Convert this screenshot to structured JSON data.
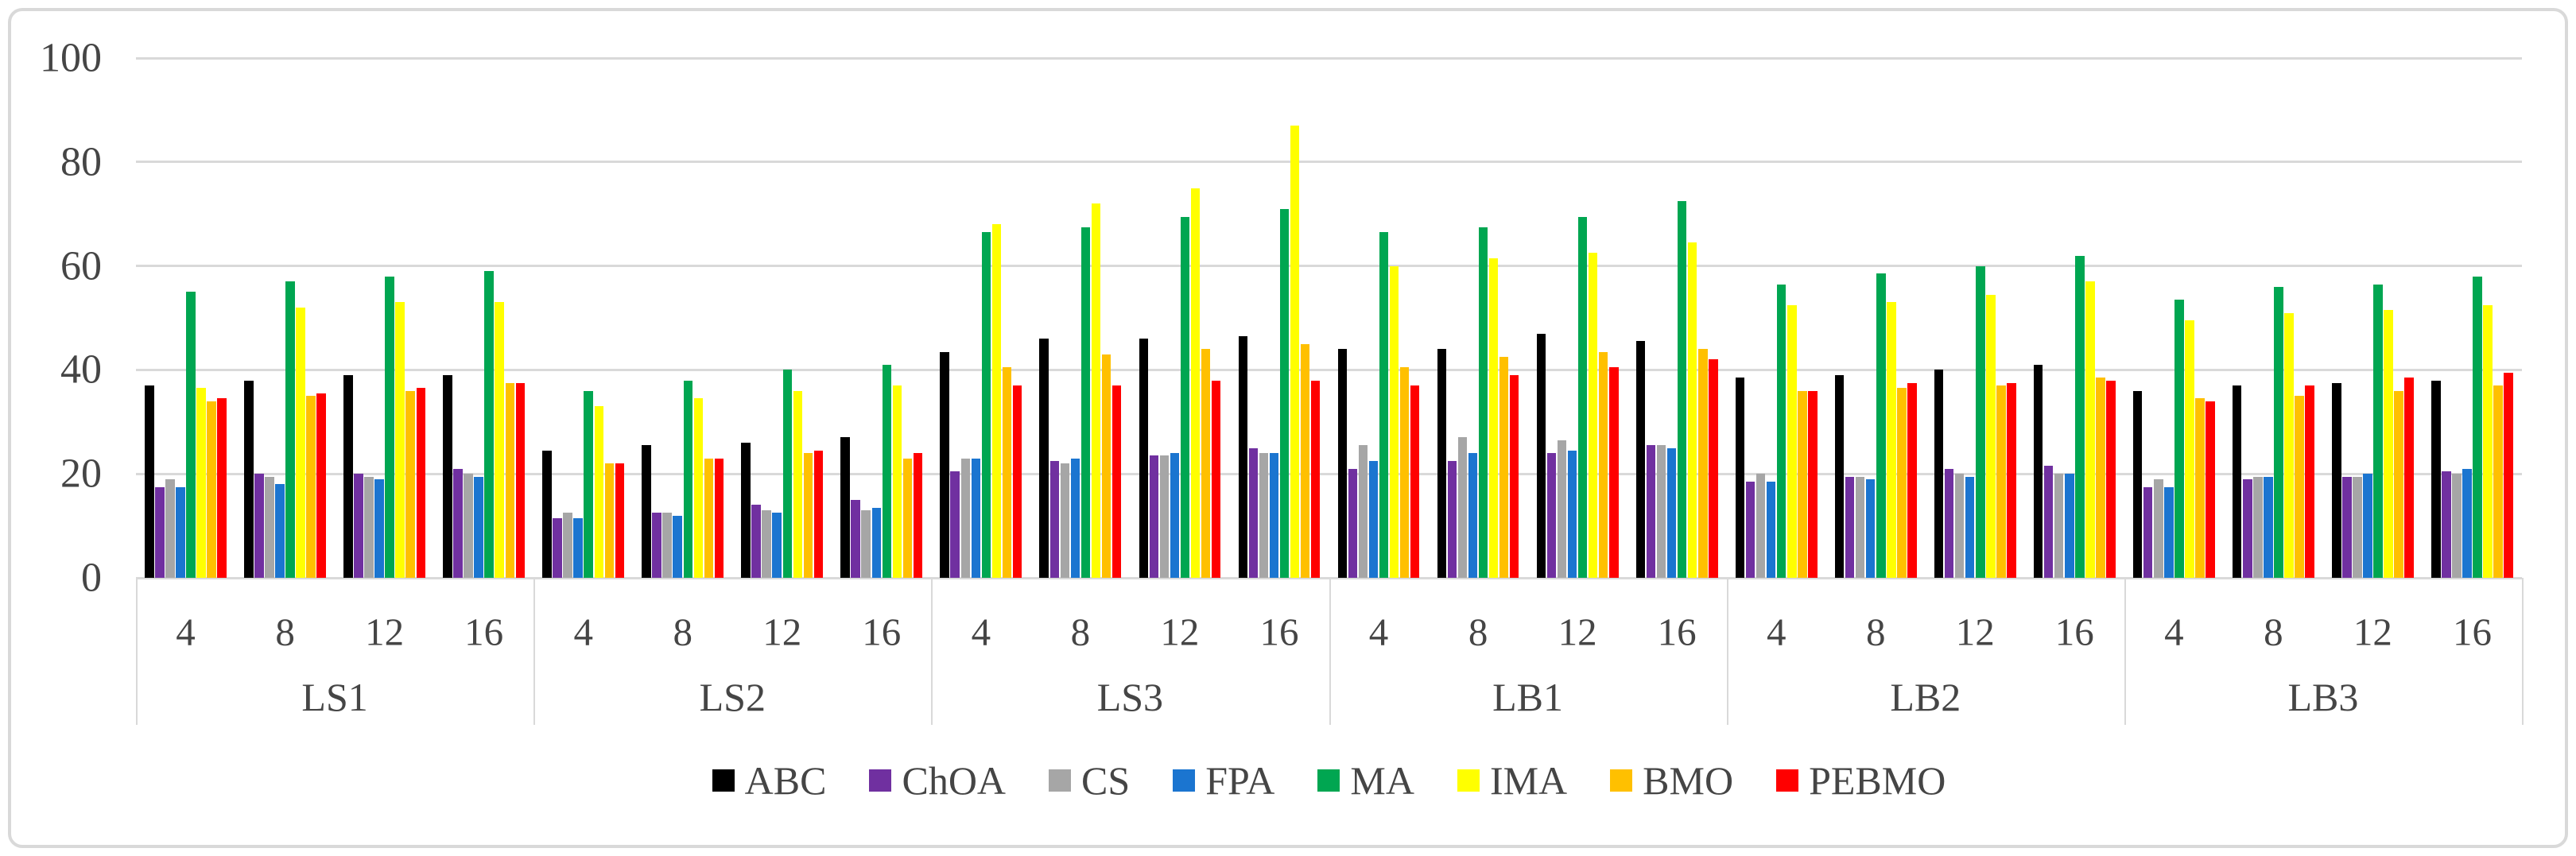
{
  "figure": {
    "background": "#FFFFFF",
    "border_color": "#D9D9D9",
    "gridline_color": "#D9D9D9",
    "axis_text_color": "#454545",
    "legend_text_color": "#454545"
  },
  "chart_data": {
    "type": "bar",
    "title": "",
    "xlabel": "",
    "ylabel": "",
    "groups": [
      "LS1",
      "LS2",
      "LS3",
      "LB1",
      "LB2",
      "LB3"
    ],
    "subgroups": [
      "4",
      "8",
      "12",
      "16"
    ],
    "y_axis": {
      "min": 0,
      "max": 100,
      "step": 20,
      "ticks": [
        "0",
        "20",
        "40",
        "60",
        "80",
        "100"
      ],
      "grid": true
    },
    "legend_position": "bottom",
    "series": [
      {
        "name": "ABC",
        "color": "#000000",
        "values": [
          [
            37,
            38,
            39,
            39
          ],
          [
            24.5,
            25.5,
            26,
            27
          ],
          [
            43.5,
            46,
            46,
            46.5
          ],
          [
            44,
            44,
            47,
            45.5
          ],
          [
            38.5,
            39,
            40,
            41
          ],
          [
            36,
            37,
            37.5,
            38
          ]
        ]
      },
      {
        "name": "ChOA",
        "color": "#7030A0",
        "values": [
          [
            17.5,
            20,
            20,
            21
          ],
          [
            11.5,
            12.5,
            14,
            15
          ],
          [
            20.5,
            22.5,
            23.5,
            25
          ],
          [
            21,
            22.5,
            24,
            25.5
          ],
          [
            18.5,
            19.5,
            21,
            21.5
          ],
          [
            17.5,
            19,
            19.5,
            20.5
          ]
        ]
      },
      {
        "name": "CS",
        "color": "#A6A6A6",
        "values": [
          [
            19,
            19.5,
            19.5,
            20
          ],
          [
            12.5,
            12.5,
            13,
            13
          ],
          [
            23,
            22,
            23.5,
            24
          ],
          [
            25.5,
            27,
            26.5,
            25.5
          ],
          [
            20,
            19.5,
            20,
            20
          ],
          [
            19,
            19.5,
            19.5,
            20
          ]
        ]
      },
      {
        "name": "FPA",
        "color": "#1B75D0",
        "values": [
          [
            17.5,
            18,
            19,
            19.5
          ],
          [
            11.5,
            12,
            12.5,
            13.5
          ],
          [
            23,
            23,
            24,
            24
          ],
          [
            22.5,
            24,
            24.5,
            25
          ],
          [
            18.5,
            19,
            19.5,
            20
          ],
          [
            17.5,
            19.5,
            20,
            21
          ]
        ]
      },
      {
        "name": "MA",
        "color": "#00A651",
        "values": [
          [
            55,
            57,
            58,
            59
          ],
          [
            36,
            38,
            40,
            41
          ],
          [
            66.5,
            67.5,
            69.5,
            71
          ],
          [
            66.5,
            67.5,
            69.5,
            72.5
          ],
          [
            56.5,
            58.5,
            60,
            62
          ],
          [
            53.5,
            56,
            56.5,
            58
          ]
        ]
      },
      {
        "name": "IMA",
        "color": "#FFFF00",
        "values": [
          [
            36.5,
            52,
            53,
            53
          ],
          [
            33,
            34.5,
            36,
            37
          ],
          [
            68,
            72,
            75,
            87
          ],
          [
            60,
            61.5,
            62.5,
            64.5
          ],
          [
            52.5,
            53,
            54.5,
            57
          ],
          [
            49.5,
            51,
            51.5,
            52.5
          ]
        ]
      },
      {
        "name": "BMO",
        "color": "#FFC000",
        "values": [
          [
            34,
            35,
            36,
            37.5
          ],
          [
            22,
            23,
            24,
            23
          ],
          [
            40.5,
            43,
            44,
            45
          ],
          [
            40.5,
            42.5,
            43.5,
            44
          ],
          [
            36,
            36.5,
            37,
            38.5
          ],
          [
            34.5,
            35,
            36,
            37
          ]
        ]
      },
      {
        "name": "PEBMO",
        "color": "#FF0000",
        "values": [
          [
            34.5,
            35.5,
            36.5,
            37.5
          ],
          [
            22,
            23,
            24.5,
            24
          ],
          [
            37,
            37,
            38,
            38
          ],
          [
            37,
            39,
            40.5,
            42
          ],
          [
            36,
            37.5,
            37.5,
            38
          ],
          [
            34,
            37,
            38.5,
            39.5
          ]
        ]
      }
    ]
  }
}
